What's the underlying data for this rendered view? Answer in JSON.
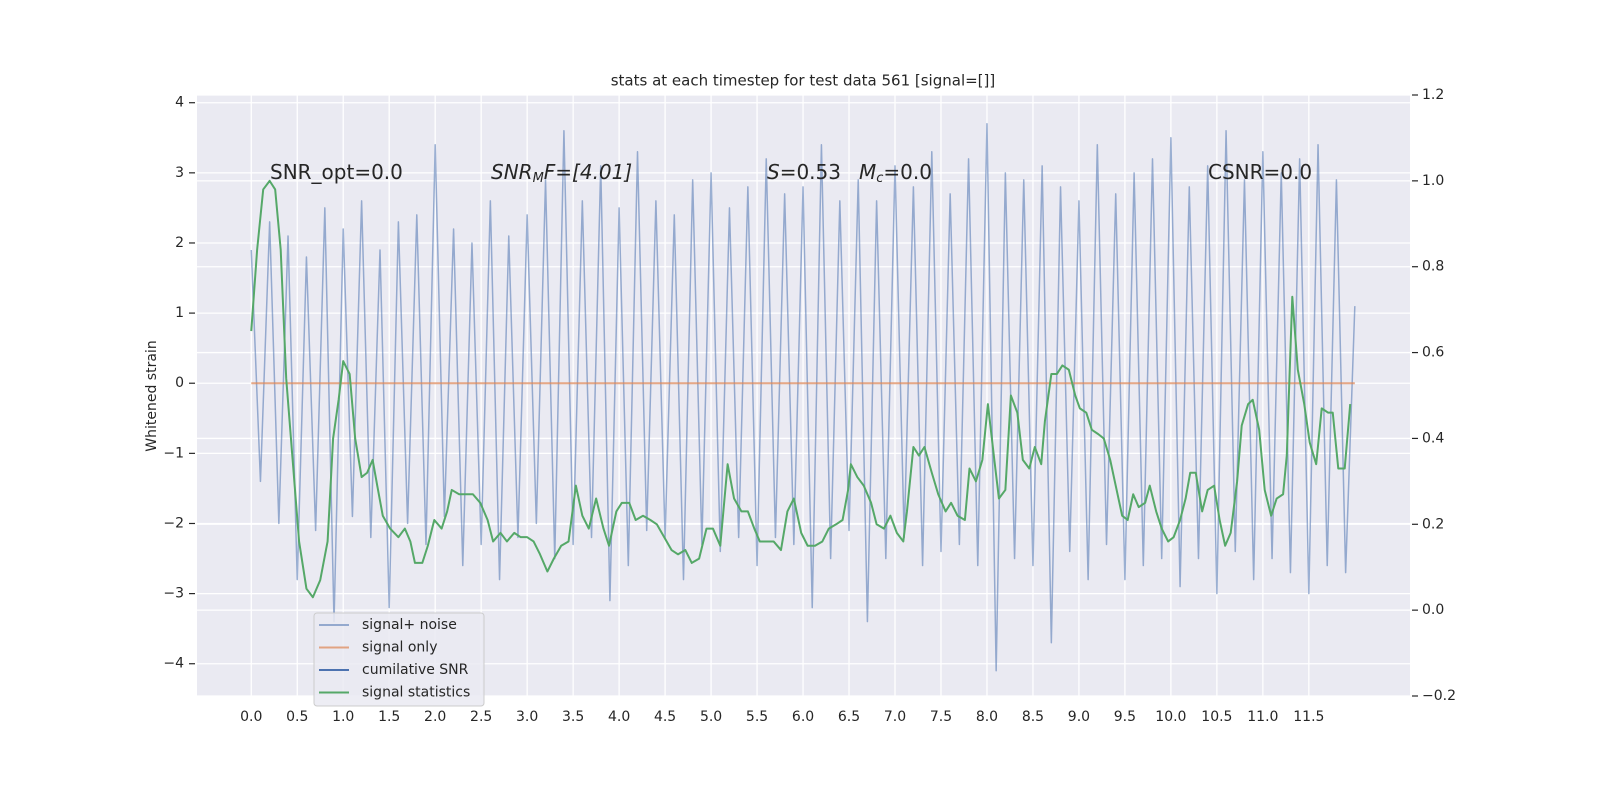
{
  "chart_data": {
    "type": "line",
    "title": "stats at each timestep for test data 561 [signal=[]]",
    "ylabel": "Whitened strain",
    "annotations": [
      [
        "SNR_opt=0.0"
      ],
      [
        "SNR",
        "M",
        "F=[4.01]"
      ],
      [
        "S",
        "=0.53"
      ],
      [
        "M",
        "c",
        "=0.0"
      ],
      [
        "CSNR=0.0"
      ]
    ],
    "xlim": [
      -0.59,
      12.6
    ],
    "xticks": [
      {
        "value": 0,
        "label": "0.0"
      },
      0.5,
      {
        "value": 1,
        "label": "1.0"
      },
      1.5,
      {
        "value": 2,
        "label": "2.0"
      },
      2.5,
      {
        "value": 3,
        "label": "3.0"
      },
      3.5,
      {
        "value": 4,
        "label": "4.0"
      },
      4.5,
      {
        "value": 5,
        "label": "5.0"
      },
      5.5,
      {
        "value": 6,
        "label": "6.0"
      },
      6.5,
      {
        "value": 7,
        "label": "7.0"
      },
      7.5,
      {
        "value": 8,
        "label": "8.0"
      },
      8.5,
      {
        "value": 9,
        "label": "9.0"
      },
      9.5,
      {
        "value": 10,
        "label": "10.0"
      },
      10.5,
      {
        "value": 11,
        "label": "11.0"
      },
      11.5
    ],
    "ylim": [
      -4.46,
      4.11
    ],
    "yticks": [
      {
        "value": -4,
        "label": "−4"
      },
      {
        "value": -3,
        "label": "−3"
      },
      {
        "value": -2,
        "label": "−2"
      },
      {
        "value": -1,
        "label": "−1"
      },
      0,
      1,
      2,
      3,
      4
    ],
    "y2lim": [
      -0.2,
      1.2
    ],
    "y2ticks": [
      {
        "value": -0.2,
        "label": "−0.2"
      },
      {
        "value": 0,
        "label": "0.0"
      },
      0.2,
      0.4,
      0.6,
      0.8,
      {
        "value": 1,
        "label": "1.0"
      },
      1.2
    ],
    "grid": true,
    "legend": "lower left",
    "series": [
      {
        "name": "signal+ noise",
        "color": "#4c72b0",
        "x": [
          0,
          0.1,
          0.2,
          0.3,
          0.4,
          0.5,
          0.6,
          0.7,
          0.8,
          0.9,
          1,
          1.1,
          1.2,
          1.3,
          1.4,
          1.5,
          1.6,
          1.7,
          1.8,
          1.9,
          2,
          2.1,
          2.2,
          2.3,
          2.4,
          2.5,
          2.6,
          2.7,
          2.8,
          2.9,
          3,
          3.1,
          3.2,
          3.3,
          3.4,
          3.5,
          3.6,
          3.7,
          3.8,
          3.9,
          4,
          4.1,
          4.2,
          4.3,
          4.4,
          4.5,
          4.6,
          4.7,
          4.8,
          4.9,
          5,
          5.1,
          5.2,
          5.3,
          5.4,
          5.5,
          5.6,
          5.7,
          5.8,
          5.9,
          6,
          6.1,
          6.2,
          6.3,
          6.4,
          6.5,
          6.6,
          6.7,
          6.8,
          6.9,
          7,
          7.1,
          7.2,
          7.3,
          7.4,
          7.5,
          7.6,
          7.7,
          7.8,
          7.9,
          8,
          8.1,
          8.2,
          8.3,
          8.4,
          8.5,
          8.6,
          8.7,
          8.8,
          8.9,
          9,
          9.1,
          9.2,
          9.3,
          9.4,
          9.5,
          9.6,
          9.7,
          9.8,
          9.9,
          10,
          10.1,
          10.2,
          10.3,
          10.4,
          10.5,
          10.6,
          10.7,
          10.8,
          10.9,
          11,
          11.1,
          11.2,
          11.3,
          11.4,
          11.5,
          11.6,
          11.7,
          11.8,
          11.9,
          12
        ],
        "values": [
          1.9,
          -1.4,
          2.3,
          -2.0,
          2.1,
          -2.8,
          1.8,
          -2.1,
          2.5,
          -3.4,
          2.2,
          -1.9,
          2.6,
          -2.2,
          1.9,
          -3.2,
          2.3,
          -2.0,
          2.4,
          -2.3,
          3.4,
          -1.9,
          2.2,
          -2.6,
          2.0,
          -2.3,
          2.6,
          -2.8,
          2.1,
          -2.2,
          2.4,
          -2.0,
          2.9,
          -2.5,
          3.6,
          -2.3,
          2.6,
          -2.2,
          3.1,
          -3.1,
          2.5,
          -2.6,
          3.3,
          -2.1,
          2.6,
          -2.2,
          2.4,
          -2.8,
          2.9,
          -2.3,
          3.0,
          -2.4,
          2.5,
          -2.2,
          2.8,
          -2.6,
          3.2,
          -2.2,
          2.7,
          -2.3,
          2.8,
          -3.2,
          3.4,
          -2.5,
          2.6,
          -2.1,
          2.9,
          -3.4,
          2.6,
          -2.5,
          3.1,
          -2.2,
          2.8,
          -2.6,
          3.3,
          -2.4,
          2.7,
          -2.3,
          3.2,
          -2.6,
          3.7,
          -4.1,
          3.0,
          -2.5,
          2.9,
          -2.6,
          3.1,
          -3.7,
          2.8,
          -2.4,
          2.6,
          -2.8,
          3.4,
          -2.3,
          2.7,
          -2.8,
          3.0,
          -2.6,
          3.2,
          -2.5,
          3.5,
          -2.9,
          2.8,
          -2.5,
          3.1,
          -3.0,
          3.6,
          -2.4,
          2.9,
          -2.8,
          3.3,
          -2.5,
          3.0,
          -2.7,
          3.2,
          -3.0,
          3.4,
          -2.6,
          2.9,
          -2.7,
          1.1
        ]
      },
      {
        "name": "signal only",
        "color": "#dd8452",
        "x": [
          0,
          12
        ],
        "values": [
          0,
          0
        ]
      },
      {
        "name": "cumilative SNR",
        "color": "#4c72b0",
        "x": [],
        "values": []
      },
      {
        "name": "signal statistics",
        "color": "#55a868",
        "axis": "y2",
        "x": [
          0,
          0.064,
          0.13,
          0.2,
          0.26,
          0.32,
          0.38,
          0.45,
          0.52,
          0.6,
          0.67,
          0.75,
          0.83,
          0.89,
          0.95,
          1.0,
          1.07,
          1.13,
          1.2,
          1.26,
          1.32,
          1.37,
          1.43,
          1.51,
          1.6,
          1.67,
          1.73,
          1.78,
          1.86,
          1.92,
          1.99,
          2.07,
          2.13,
          2.18,
          2.26,
          2.34,
          2.41,
          2.49,
          2.57,
          2.63,
          2.71,
          2.78,
          2.86,
          2.93,
          3.0,
          3.07,
          3.14,
          3.22,
          3.29,
          3.37,
          3.45,
          3.53,
          3.6,
          3.67,
          3.75,
          3.83,
          3.89,
          3.97,
          4.03,
          4.11,
          4.18,
          4.26,
          4.34,
          4.41,
          4.49,
          4.57,
          4.64,
          4.72,
          4.79,
          4.87,
          4.95,
          5.02,
          5.1,
          5.18,
          5.25,
          5.33,
          5.4,
          5.47,
          5.53,
          5.61,
          5.68,
          5.76,
          5.83,
          5.9,
          5.98,
          6.05,
          6.13,
          6.21,
          6.28,
          6.36,
          6.43,
          6.49,
          6.52,
          6.59,
          6.66,
          6.74,
          6.8,
          6.88,
          6.95,
          7.02,
          7.09,
          7.13,
          7.2,
          7.26,
          7.32,
          7.4,
          7.47,
          7.55,
          7.61,
          7.68,
          7.76,
          7.81,
          7.88,
          7.95,
          8.01,
          8.08,
          8.13,
          8.2,
          8.26,
          8.33,
          8.39,
          8.46,
          8.52,
          8.59,
          8.63,
          8.7,
          8.76,
          8.82,
          8.89,
          8.96,
          9.01,
          9.08,
          9.14,
          9.21,
          9.27,
          9.34,
          9.4,
          9.47,
          9.53,
          9.59,
          9.65,
          9.72,
          9.77,
          9.84,
          9.9,
          9.97,
          10.03,
          10.1,
          10.16,
          10.21,
          10.27,
          10.34,
          10.4,
          10.47,
          10.53,
          10.59,
          10.65,
          10.72,
          10.77,
          10.84,
          10.89,
          10.96,
          11.02,
          11.09,
          11.15,
          11.22,
          11.26,
          11.32,
          11.38,
          11.45,
          11.51,
          11.58,
          11.64,
          11.71,
          11.76,
          11.82,
          11.89,
          11.95
        ],
        "values": [
          0.65,
          0.84,
          0.98,
          1.0,
          0.98,
          0.84,
          0.54,
          0.35,
          0.16,
          0.05,
          0.03,
          0.07,
          0.16,
          0.4,
          0.49,
          0.58,
          0.55,
          0.4,
          0.31,
          0.32,
          0.35,
          0.29,
          0.22,
          0.19,
          0.17,
          0.19,
          0.16,
          0.11,
          0.11,
          0.15,
          0.21,
          0.19,
          0.23,
          0.28,
          0.27,
          0.27,
          0.27,
          0.25,
          0.21,
          0.16,
          0.18,
          0.16,
          0.18,
          0.17,
          0.17,
          0.16,
          0.13,
          0.09,
          0.12,
          0.15,
          0.16,
          0.29,
          0.22,
          0.19,
          0.26,
          0.19,
          0.15,
          0.23,
          0.25,
          0.25,
          0.21,
          0.22,
          0.21,
          0.2,
          0.17,
          0.14,
          0.13,
          0.14,
          0.11,
          0.12,
          0.19,
          0.19,
          0.15,
          0.34,
          0.26,
          0.23,
          0.23,
          0.19,
          0.16,
          0.16,
          0.16,
          0.14,
          0.23,
          0.26,
          0.18,
          0.15,
          0.15,
          0.16,
          0.19,
          0.2,
          0.21,
          0.28,
          0.34,
          0.31,
          0.29,
          0.25,
          0.2,
          0.19,
          0.22,
          0.18,
          0.16,
          0.23,
          0.38,
          0.36,
          0.38,
          0.32,
          0.27,
          0.23,
          0.25,
          0.22,
          0.21,
          0.33,
          0.3,
          0.35,
          0.48,
          0.35,
          0.26,
          0.28,
          0.5,
          0.46,
          0.35,
          0.33,
          0.38,
          0.34,
          0.44,
          0.55,
          0.55,
          0.57,
          0.56,
          0.5,
          0.47,
          0.46,
          0.42,
          0.41,
          0.4,
          0.35,
          0.29,
          0.22,
          0.21,
          0.27,
          0.24,
          0.25,
          0.29,
          0.23,
          0.19,
          0.16,
          0.17,
          0.21,
          0.26,
          0.32,
          0.32,
          0.23,
          0.28,
          0.29,
          0.21,
          0.15,
          0.18,
          0.3,
          0.43,
          0.48,
          0.49,
          0.42,
          0.28,
          0.22,
          0.26,
          0.27,
          0.36,
          0.73,
          0.56,
          0.48,
          0.39,
          0.34,
          0.47,
          0.46,
          0.46,
          0.33,
          0.33,
          0.48
        ]
      }
    ]
  }
}
